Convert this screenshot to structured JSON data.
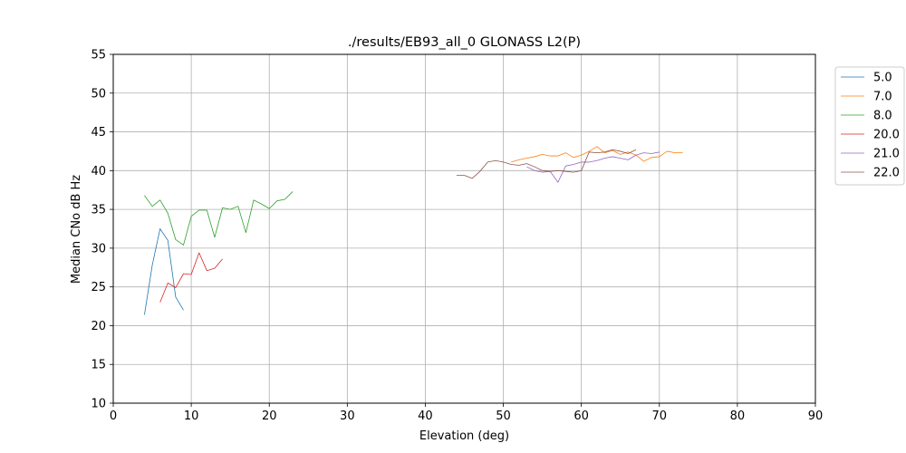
{
  "chart_data": {
    "type": "line",
    "title": "./results/EB93_all_0 GLONASS L2(P)",
    "xlabel": "Elevation (deg)",
    "ylabel": "Median CNo dB Hz",
    "xlim": [
      0,
      90
    ],
    "ylim": [
      10,
      55
    ],
    "xticks": [
      0,
      10,
      20,
      30,
      40,
      50,
      60,
      70,
      80,
      90
    ],
    "yticks": [
      10,
      15,
      20,
      25,
      30,
      35,
      40,
      45,
      50,
      55
    ],
    "grid": true,
    "legend_position": "upper-right-outside",
    "series": [
      {
        "name": "5.0",
        "color": "#1f77b4",
        "x": [
          4,
          5,
          6,
          7,
          8,
          9
        ],
        "y": [
          21.4,
          27.8,
          32.5,
          31.0,
          23.7,
          22.0
        ]
      },
      {
        "name": "7.0",
        "color": "#ff7f0e",
        "x": [
          51,
          52,
          53,
          54,
          55,
          56,
          57,
          58,
          59,
          60,
          61,
          62,
          63,
          64,
          65,
          66,
          67,
          68,
          69,
          70,
          71,
          72,
          73
        ],
        "y": [
          41.1,
          41.4,
          41.6,
          41.8,
          42.1,
          41.9,
          41.9,
          42.3,
          41.7,
          42.0,
          42.5,
          43.1,
          42.3,
          42.6,
          42.1,
          42.4,
          42.0,
          41.2,
          41.7,
          41.8,
          42.5,
          42.3,
          42.3
        ]
      },
      {
        "name": "8.0",
        "color": "#2ca02c",
        "x": [
          4,
          5,
          6,
          7,
          8,
          9,
          10,
          11,
          12,
          13,
          14,
          15,
          16,
          17,
          18,
          19,
          20,
          21,
          22,
          23
        ],
        "y": [
          36.8,
          35.4,
          36.2,
          34.5,
          31.1,
          30.4,
          34.1,
          34.9,
          34.9,
          31.4,
          35.2,
          35.0,
          35.4,
          32.0,
          36.2,
          35.7,
          35.1,
          36.1,
          36.3,
          37.3
        ]
      },
      {
        "name": "20.0",
        "color": "#d62728",
        "x": [
          6,
          7,
          8,
          9,
          10,
          11,
          12,
          13,
          14
        ],
        "y": [
          23.0,
          25.5,
          24.9,
          26.7,
          26.6,
          29.4,
          27.1,
          27.4,
          28.6
        ]
      },
      {
        "name": "21.0",
        "color": "#9467bd",
        "x": [
          53,
          54,
          55,
          56,
          57,
          58,
          59,
          60,
          61,
          62,
          63,
          64,
          65,
          66,
          67,
          68,
          69,
          70
        ],
        "y": [
          40.5,
          40.0,
          39.8,
          39.9,
          38.5,
          40.6,
          40.8,
          41.1,
          41.1,
          41.3,
          41.6,
          41.8,
          41.6,
          41.4,
          42.0,
          42.3,
          42.2,
          42.4
        ]
      },
      {
        "name": "22.0",
        "color": "#8c564b",
        "x": [
          44,
          45,
          46,
          47,
          48,
          49,
          50,
          51,
          52,
          53,
          54,
          55,
          56,
          57,
          58,
          59,
          60,
          61,
          62,
          63,
          64,
          65,
          66,
          67
        ],
        "y": [
          39.4,
          39.4,
          39.0,
          39.9,
          41.1,
          41.3,
          41.1,
          40.8,
          40.7,
          40.9,
          40.5,
          40.0,
          39.9,
          40.0,
          39.9,
          39.8,
          40.0,
          42.4,
          42.3,
          42.4,
          42.7,
          42.5,
          42.2,
          42.7
        ]
      }
    ]
  }
}
